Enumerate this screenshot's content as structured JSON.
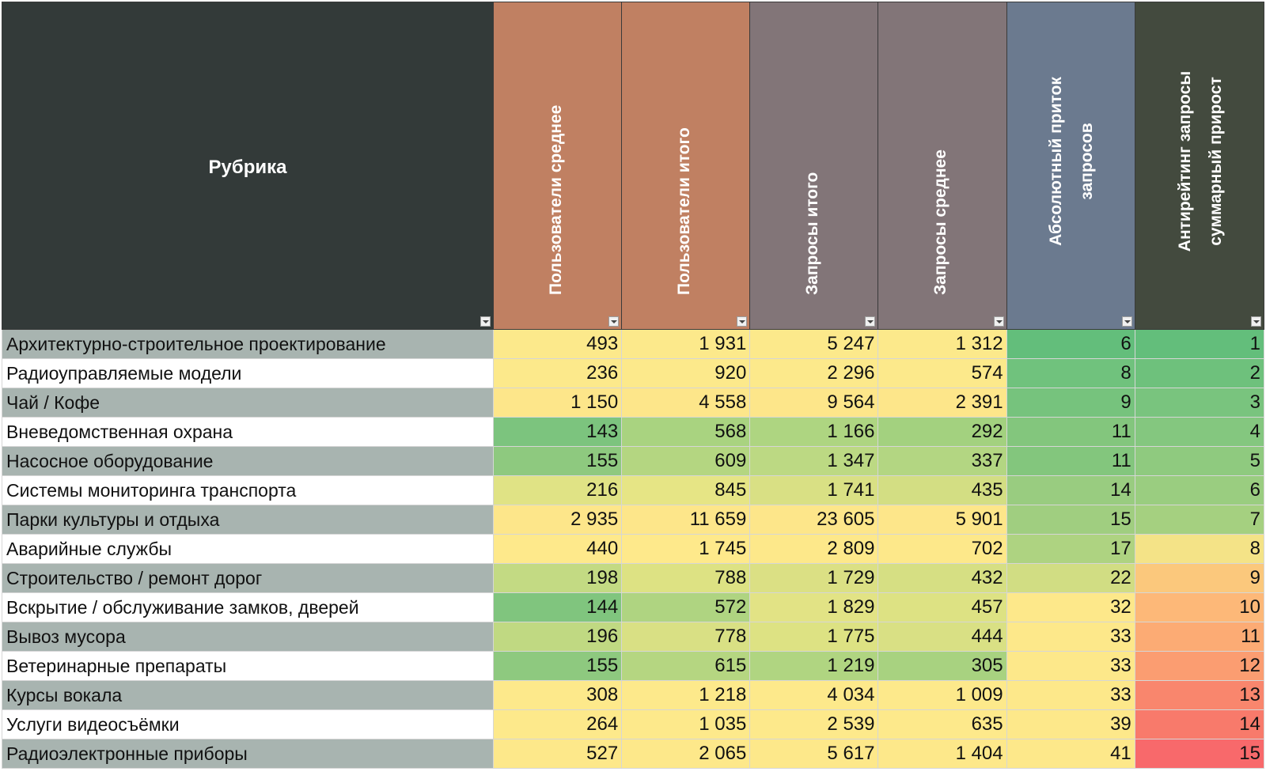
{
  "table": {
    "headers": [
      {
        "label": "Рубрика",
        "color": "#333a39"
      },
      {
        "label": "Пользователи среднее",
        "color": "#c08062"
      },
      {
        "label": "Пользователи итого",
        "color": "#c08062"
      },
      {
        "label": "Запросы итого",
        "color": "#827578"
      },
      {
        "label": "Запросы среднее",
        "color": "#827578"
      },
      {
        "label": "Абсолютный приток запросов",
        "color": "#6b7a8f"
      },
      {
        "label": "Антирейтинг запросы суммарный прирост",
        "color": "#434a3e"
      }
    ],
    "rows": [
      {
        "name": "Архитектурно-строительное проектирование",
        "values": [
          "493",
          "1 931",
          "5 247",
          "1 312",
          "6",
          "1"
        ],
        "colors": [
          "#fce98b",
          "#fce98b",
          "#fce98b",
          "#fce98b",
          "#63be7b",
          "#63be7b"
        ]
      },
      {
        "name": "Радиоуправляемые модели",
        "values": [
          "236",
          "920",
          "2 296",
          "574",
          "8",
          "2"
        ],
        "colors": [
          "#fce98b",
          "#fce98b",
          "#fce98b",
          "#fce98b",
          "#70c27d",
          "#6ec17c"
        ]
      },
      {
        "name": "Чай / Кофе",
        "values": [
          "1 150",
          "4 558",
          "9 564",
          "2 391",
          "9",
          "3"
        ],
        "colors": [
          "#fde68a",
          "#fde68a",
          "#fde68a",
          "#fde68a",
          "#76c37d",
          "#79c47e"
        ]
      },
      {
        "name": "Вневедомственная охрана",
        "values": [
          "143",
          "568",
          "1 166",
          "292",
          "11",
          "4"
        ],
        "colors": [
          "#7cc47e",
          "#a9d380",
          "#aed581",
          "#a3d17f",
          "#83c67d",
          "#84c77f"
        ]
      },
      {
        "name": "Насосное оборудование",
        "values": [
          "155",
          "609",
          "1 347",
          "337",
          "11",
          "5"
        ],
        "colors": [
          "#8ec97f",
          "#b4d681",
          "#bcd983",
          "#b3d682",
          "#83c67d",
          "#8fca7f"
        ]
      },
      {
        "name": "Системы мониторинга транспорта",
        "values": [
          "216",
          "845",
          "1 741",
          "435",
          "14",
          "6"
        ],
        "colors": [
          "#e0e385",
          "#e6e585",
          "#d9e084",
          "#d3de83",
          "#99cc80",
          "#9acd80"
        ]
      },
      {
        "name": "Парки культуры и отдыха",
        "values": [
          "2 935",
          "11 659",
          "23 605",
          "5 901",
          "15",
          "7"
        ],
        "colors": [
          "#fde68a",
          "#fde68a",
          "#fde68a",
          "#fde68a",
          "#a0ce80",
          "#a5d080"
        ]
      },
      {
        "name": "Аварийные службы",
        "values": [
          "440",
          "1 745",
          "2 809",
          "702",
          "17",
          "8"
        ],
        "colors": [
          "#fee98b",
          "#fee98b",
          "#fde88a",
          "#fde88a",
          "#aed381",
          "#f4e387"
        ]
      },
      {
        "name": "Строительство / ремонт дорог",
        "values": [
          "198",
          "788",
          "1 729",
          "432",
          "22",
          "9"
        ],
        "colors": [
          "#c3da83",
          "#dde283",
          "#dbe084",
          "#d6df83",
          "#d1dd83",
          "#fbc87c"
        ]
      },
      {
        "name": "Вскрытие / обслуживание замков, дверей",
        "values": [
          "144",
          "572",
          "1 829",
          "457",
          "32",
          "10"
        ],
        "colors": [
          "#80c57e",
          "#afd481",
          "#e2e385",
          "#dde283",
          "#fde88a",
          "#fdb878"
        ]
      },
      {
        "name": "Вывоз мусора",
        "values": [
          "196",
          "778",
          "1 775",
          "444",
          "33",
          "11"
        ],
        "colors": [
          "#c0d982",
          "#d9e084",
          "#dde283",
          "#d9e084",
          "#fde88a",
          "#fcab74"
        ]
      },
      {
        "name": "Ветеринарные препараты",
        "values": [
          "155",
          "615",
          "1 219",
          "305",
          "33",
          "12"
        ],
        "colors": [
          "#8ec97f",
          "#b5d681",
          "#b0d581",
          "#a8d280",
          "#fde88a",
          "#fb9d71"
        ]
      },
      {
        "name": "Курсы вокала",
        "values": [
          "308",
          "1 218",
          "4 034",
          "1 009",
          "33",
          "13"
        ],
        "colors": [
          "#fde98b",
          "#fde98b",
          "#fde98b",
          "#fde98b",
          "#fde88a",
          "#f9866d"
        ]
      },
      {
        "name": "Услуги видеосъёмки",
        "values": [
          "264",
          "1 035",
          "2 539",
          "635",
          "39",
          "14"
        ],
        "colors": [
          "#fde98b",
          "#fde98b",
          "#fde98b",
          "#fde98b",
          "#fde88a",
          "#f87a6b"
        ]
      },
      {
        "name": "Радиоэлектронные приборы",
        "values": [
          "527",
          "2 065",
          "5 617",
          "1 404",
          "41",
          "15"
        ],
        "colors": [
          "#fde88a",
          "#fde88a",
          "#fde88a",
          "#fde88a",
          "#fde88a",
          "#f8696b"
        ]
      }
    ]
  }
}
